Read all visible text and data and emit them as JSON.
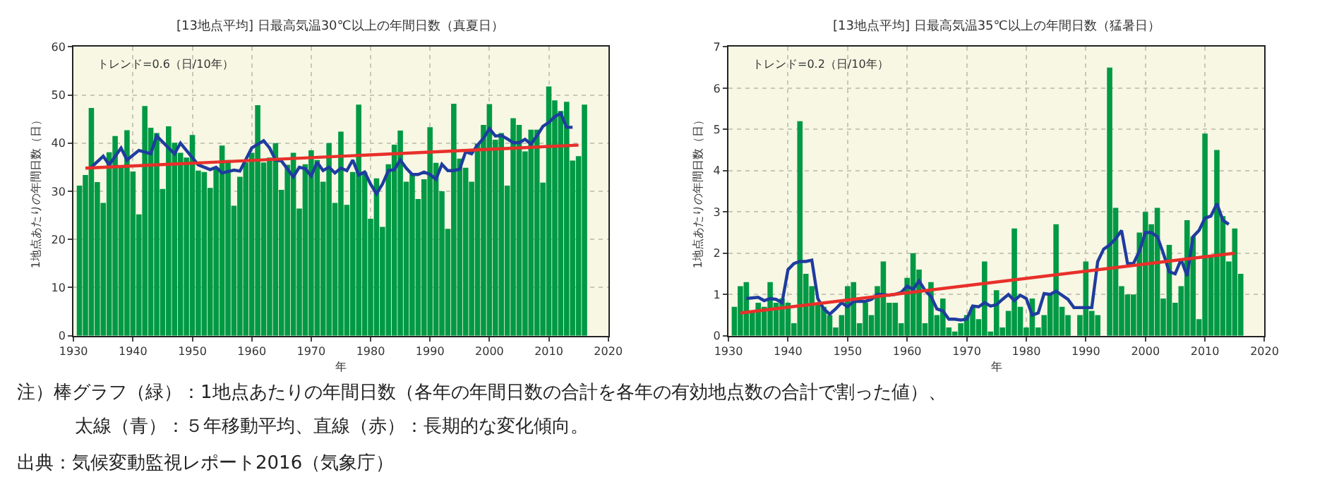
{
  "chart_data": [
    {
      "type": "bar",
      "title": "[13地点平均] 日最高気温30℃以上の年間日数（真夏日）",
      "xlabel": "年",
      "ylabel": "1地点あたりの年間日数（日）",
      "xlim": [
        1930,
        2020
      ],
      "xticks": [
        1930,
        1940,
        1950,
        1960,
        1970,
        1980,
        1990,
        2000,
        2010,
        2020
      ],
      "ylim": [
        0,
        60
      ],
      "yticks": [
        0,
        10,
        20,
        30,
        40,
        50,
        60
      ],
      "grid": true,
      "annotations": [
        "トレンド=0.6（日/10年）",
        "注）棒グラフ（緑）：1地点あたりの年間日数（各年の年間日数の合計を各年の有効地点数の合計で割った値）、",
        "太線（青）：５年移動平均、直線（赤）：長期的な変化傾向。",
        "出典：気候変動監視レポート2016（気象庁）"
      ],
      "x": [
        1931,
        1932,
        1933,
        1934,
        1935,
        1936,
        1937,
        1938,
        1939,
        1940,
        1941,
        1942,
        1943,
        1944,
        1945,
        1946,
        1947,
        1948,
        1949,
        1950,
        1951,
        1952,
        1953,
        1954,
        1955,
        1956,
        1957,
        1958,
        1959,
        1960,
        1961,
        1962,
        1963,
        1964,
        1965,
        1966,
        1967,
        1968,
        1969,
        1970,
        1971,
        1972,
        1973,
        1974,
        1975,
        1976,
        1977,
        1978,
        1979,
        1980,
        1981,
        1982,
        1983,
        1984,
        1985,
        1986,
        1987,
        1988,
        1989,
        1990,
        1991,
        1992,
        1993,
        1994,
        1995,
        1996,
        1997,
        1998,
        1999,
        2000,
        2001,
        2002,
        2003,
        2004,
        2005,
        2006,
        2007,
        2008,
        2009,
        2010,
        2011,
        2012,
        2013,
        2014,
        2015,
        2016
      ],
      "series": [
        {
          "color": "#009944",
          "values": [
            31.2,
            33.4,
            47.3,
            31.9,
            27.6,
            38.1,
            41.5,
            35,
            42.7,
            34.1,
            25.2,
            47.7,
            43.2,
            42.1,
            30.5,
            43.5,
            40.1,
            38,
            37,
            41.7,
            34.3,
            34,
            30.7,
            35,
            39.5,
            36.5,
            27,
            33,
            36,
            38,
            47.9,
            36,
            37,
            40,
            30.3,
            35.5,
            38,
            26.4,
            35.6,
            38.5,
            36.5,
            32,
            40,
            27.6,
            42.4,
            27.2,
            34,
            48,
            34,
            24.3,
            32.7,
            22.6,
            35.6,
            39.7,
            42.6,
            32,
            33.5,
            28.4,
            32.5,
            43.3,
            35.9,
            30,
            22.2,
            48.2,
            36.8,
            34.9,
            32,
            39.9,
            43.8,
            48.1,
            40.7,
            42.1,
            31.2,
            45.2,
            43.8,
            38.3,
            42.8,
            42.8,
            31.8,
            51.8,
            48.9,
            46.7,
            48.6,
            36.4,
            37.3,
            48
          ]
        },
        {
          "type": "line",
          "color": "#1f3c9e",
          "x": [
            1933,
            1935,
            1936,
            1938,
            1939,
            1941,
            1943,
            1944,
            1946,
            1947,
            1948,
            1950,
            1951,
            1953,
            1954,
            1955,
            1957,
            1958,
            1960,
            1962,
            1963,
            1964,
            1965,
            1967,
            1968,
            1969,
            1970,
            1971,
            1972,
            1973,
            1974,
            1975,
            1976,
            1977,
            1978,
            1979,
            1980,
            1981,
            1982,
            1983,
            1984,
            1985,
            1986,
            1987,
            1988,
            1989,
            1990,
            1991,
            1992,
            1993,
            1994,
            1995,
            1996,
            1997,
            1998,
            1999,
            2000,
            2001,
            2002,
            2003,
            2004,
            2005,
            2006,
            2007,
            2008,
            2009,
            2010,
            2011,
            2012,
            2013,
            2014
          ],
          "values": [
            35,
            37.3,
            35.5,
            39,
            36.5,
            38.5,
            37.8,
            41.5,
            39,
            37.8,
            40,
            37,
            35.5,
            34.5,
            35,
            33.8,
            34.4,
            34.2,
            39,
            40.5,
            39,
            36.5,
            36.3,
            33,
            35,
            34.7,
            33.2,
            36,
            34.3,
            35,
            33.8,
            34.8,
            34.3,
            36.5,
            33.4,
            34,
            31.5,
            29.5,
            31.5,
            34.3,
            34.5,
            36.5,
            34.8,
            33.5,
            33.5,
            34,
            33.5,
            32.5,
            35.6,
            34.3,
            34.3,
            34.6,
            38.2,
            37.8,
            39.6,
            41,
            43,
            41.5,
            41.6,
            40.9,
            40.1,
            40.1,
            40.8,
            39.8,
            41.5,
            43.5,
            44.3,
            45.5,
            46.2,
            43.3,
            43.3
          ]
        },
        {
          "type": "line",
          "color": "#e8302a",
          "x": [
            1932,
            2015
          ],
          "values": [
            34.8,
            39.6
          ]
        }
      ]
    },
    {
      "type": "bar",
      "title": "[13地点平均] 日最高気温35℃以上の年間日数（猛暑日）",
      "xlabel": "年",
      "ylabel": "1地点あたりの年間日数（日）",
      "xlim": [
        1930,
        2020
      ],
      "xticks": [
        1930,
        1940,
        1950,
        1960,
        1970,
        1980,
        1990,
        2000,
        2010,
        2020
      ],
      "ylim": [
        0,
        7
      ],
      "yticks": [
        0,
        1,
        2,
        3,
        4,
        5,
        6,
        7
      ],
      "grid": true,
      "annotations": [
        "トレンド=0.2（日/10年）"
      ],
      "x": [
        1931,
        1932,
        1933,
        1934,
        1935,
        1936,
        1937,
        1938,
        1939,
        1940,
        1941,
        1942,
        1943,
        1944,
        1945,
        1946,
        1947,
        1948,
        1949,
        1950,
        1951,
        1952,
        1953,
        1954,
        1955,
        1956,
        1957,
        1958,
        1959,
        1960,
        1961,
        1962,
        1963,
        1964,
        1965,
        1966,
        1967,
        1968,
        1969,
        1970,
        1971,
        1972,
        1973,
        1974,
        1975,
        1976,
        1977,
        1978,
        1979,
        1980,
        1981,
        1982,
        1983,
        1984,
        1985,
        1986,
        1987,
        1988,
        1989,
        1990,
        1991,
        1992,
        1993,
        1994,
        1995,
        1996,
        1997,
        1998,
        1999,
        2000,
        2001,
        2002,
        2003,
        2004,
        2005,
        2006,
        2007,
        2008,
        2009,
        2010,
        2011,
        2012,
        2013,
        2014,
        2015,
        2016
      ],
      "series": [
        {
          "color": "#009944",
          "values": [
            0.7,
            1.2,
            1.3,
            0.6,
            0.8,
            0.7,
            1.3,
            0.8,
            0.9,
            0.8,
            0.3,
            5.2,
            1.5,
            1.2,
            0.8,
            0.7,
            0.5,
            0.2,
            0.5,
            1.2,
            1.3,
            0.3,
            0.8,
            0.5,
            1.2,
            1.8,
            0.8,
            0.8,
            0.3,
            1.4,
            2.0,
            1.6,
            0.3,
            1.3,
            0.5,
            0.9,
            0.2,
            0.1,
            0.3,
            0.5,
            0.7,
            0.4,
            1.8,
            0.1,
            1.1,
            0.2,
            0.6,
            2.6,
            0.7,
            0.2,
            0.9,
            0.2,
            0.5,
            1.0,
            2.7,
            0.7,
            0.5,
            0,
            0.5,
            1.8,
            0.6,
            0.5,
            0,
            6.5,
            3.1,
            1.2,
            1.0,
            1.0,
            2.5,
            3.0,
            2.7,
            3.1,
            0.9,
            2.2,
            0.8,
            1.2,
            2.8,
            2.4,
            0.4,
            4.9,
            1.9,
            4.5,
            2.9,
            1.8,
            2.6,
            1.5
          ]
        },
        {
          "type": "line",
          "color": "#1f3c9e",
          "x": [
            1933,
            1935,
            1936,
            1937,
            1938,
            1939,
            1940,
            1941,
            1942,
            1943,
            1944,
            1945,
            1946,
            1947,
            1948,
            1949,
            1950,
            1951,
            1952,
            1953,
            1954,
            1955,
            1956,
            1957,
            1958,
            1959,
            1960,
            1961,
            1962,
            1963,
            1964,
            1965,
            1966,
            1967,
            1968,
            1969,
            1970,
            1971,
            1972,
            1973,
            1974,
            1975,
            1976,
            1977,
            1978,
            1979,
            1980,
            1981,
            1982,
            1983,
            1984,
            1985,
            1986,
            1987,
            1988,
            1989,
            1990,
            1991,
            1992,
            1993,
            1994,
            1995,
            1996,
            1997,
            1998,
            1999,
            2000,
            2001,
            2002,
            2003,
            2004,
            2005,
            2006,
            2007,
            2008,
            2009,
            2010,
            2011,
            2012,
            2013,
            2014
          ],
          "values": [
            0.9,
            0.93,
            0.85,
            0.9,
            0.88,
            0.8,
            1.6,
            1.75,
            1.8,
            1.8,
            1.83,
            0.9,
            0.65,
            0.52,
            0.65,
            0.8,
            0.7,
            0.83,
            0.83,
            0.83,
            0.88,
            1.0,
            1.0,
            0.98,
            1.0,
            1.05,
            1.2,
            1.12,
            1.33,
            1.1,
            0.95,
            0.65,
            0.6,
            0.4,
            0.4,
            0.38,
            0.4,
            0.72,
            0.7,
            0.8,
            0.72,
            0.75,
            0.88,
            1.0,
            0.85,
            0.98,
            0.9,
            0.5,
            0.55,
            1.02,
            1.0,
            1.08,
            0.98,
            0.88,
            0.68,
            0.68,
            0.68,
            0.68,
            1.8,
            2.1,
            2.2,
            2.35,
            2.55,
            1.75,
            1.75,
            2.05,
            2.5,
            2.5,
            2.4,
            2.0,
            1.55,
            1.5,
            1.85,
            1.45,
            2.4,
            2.55,
            2.85,
            2.9,
            3.2,
            2.8,
            2.7
          ]
        },
        {
          "type": "line",
          "color": "#e8302a",
          "x": [
            1932,
            2015
          ],
          "values": [
            0.55,
            2.0
          ]
        }
      ]
    }
  ]
}
